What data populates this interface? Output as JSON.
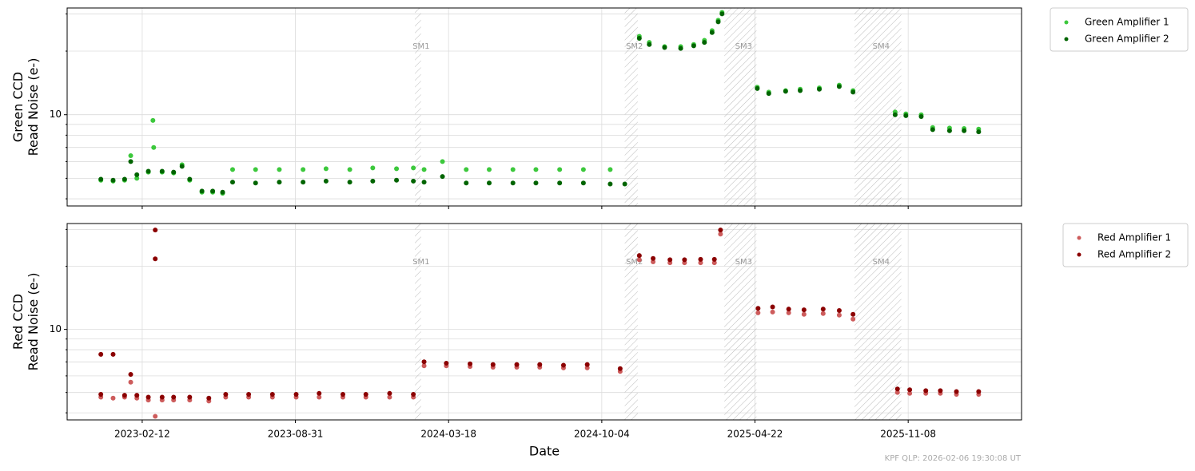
{
  "chart_data": [
    {
      "type": "scatter",
      "ylabel": [
        "Green CCD",
        "Read Noise (e-)"
      ],
      "log_y": true,
      "grid": true,
      "xlim": [
        "2022-11-06",
        "2026-04-05"
      ],
      "xticks": [
        "2023-02-12",
        "2023-08-31",
        "2024-03-18",
        "2024-10-04",
        "2025-04-22",
        "2025-11-08"
      ],
      "ylim": [
        3.7,
        32
      ],
      "yticks": [
        10
      ],
      "minor_yticks": [
        4,
        5,
        6,
        7,
        8,
        9,
        20,
        30
      ],
      "legend": "outside-upper-right",
      "shaded_regions": [
        {
          "label": "SM1",
          "start": "2024-02-03",
          "end": "2024-02-11"
        },
        {
          "label": "SM2",
          "start": "2024-11-03",
          "end": "2024-11-20"
        },
        {
          "label": "SM3",
          "start": "2025-03-13",
          "end": "2025-04-24"
        },
        {
          "label": "SM4",
          "start": "2025-08-30",
          "end": "2025-10-30"
        }
      ],
      "series": [
        {
          "name": "Green Amplifier 1",
          "color": "#3cc83c",
          "x": [
            "2022-12-20",
            "2023-01-05",
            "2023-01-20",
            "2023-01-28",
            "2023-02-05",
            "2023-02-20",
            "2023-02-26",
            "2023-02-27",
            "2023-03-10",
            "2023-03-25",
            "2023-04-05",
            "2023-04-15",
            "2023-05-01",
            "2023-05-15",
            "2023-05-28",
            "2023-06-10",
            "2023-07-10",
            "2023-08-10",
            "2023-09-10",
            "2023-10-10",
            "2023-11-10",
            "2023-12-10",
            "2024-01-10",
            "2024-02-01",
            "2024-02-15",
            "2024-03-10",
            "2024-04-10",
            "2024-05-10",
            "2024-06-10",
            "2024-07-10",
            "2024-08-10",
            "2024-09-10",
            "2024-10-15",
            "2024-11-22",
            "2024-12-05",
            "2024-12-25",
            "2025-01-15",
            "2025-02-01",
            "2025-02-15",
            "2025-02-25",
            "2025-03-05",
            "2025-03-10",
            "2025-04-25",
            "2025-05-10",
            "2025-06-01",
            "2025-06-20",
            "2025-07-15",
            "2025-08-10",
            "2025-08-28",
            "2025-10-22",
            "2025-11-05",
            "2025-11-25",
            "2025-12-10",
            "2026-01-01",
            "2026-01-20",
            "2026-02-08"
          ],
          "values": [
            4.9,
            4.85,
            4.9,
            6.4,
            5.0,
            5.35,
            9.4,
            7.0,
            5.35,
            5.3,
            5.8,
            4.9,
            4.3,
            4.3,
            4.25,
            5.5,
            5.5,
            5.5,
            5.5,
            5.55,
            5.5,
            5.6,
            5.55,
            5.6,
            5.5,
            6.0,
            5.5,
            5.5,
            5.5,
            5.5,
            5.5,
            5.5,
            5.5,
            23.5,
            22.0,
            21.0,
            21.0,
            21.5,
            22.5,
            25.0,
            28.0,
            30.5,
            13.5,
            12.8,
            13.0,
            13.2,
            13.4,
            13.8,
            13.0,
            10.3,
            10.1,
            10.0,
            8.7,
            8.65,
            8.6,
            8.55
          ]
        },
        {
          "name": "Green Amplifier 2",
          "color": "#006400",
          "x": [
            "2022-12-20",
            "2023-01-05",
            "2023-01-20",
            "2023-01-28",
            "2023-02-05",
            "2023-02-20",
            "2023-03-10",
            "2023-03-25",
            "2023-04-05",
            "2023-04-15",
            "2023-05-01",
            "2023-05-15",
            "2023-05-28",
            "2023-06-10",
            "2023-07-10",
            "2023-08-10",
            "2023-09-10",
            "2023-10-10",
            "2023-11-10",
            "2023-12-10",
            "2024-01-10",
            "2024-02-01",
            "2024-02-15",
            "2024-03-10",
            "2024-04-10",
            "2024-05-10",
            "2024-06-10",
            "2024-07-10",
            "2024-08-10",
            "2024-09-10",
            "2024-10-15",
            "2024-11-03",
            "2024-11-22",
            "2024-12-05",
            "2024-12-25",
            "2025-01-15",
            "2025-02-01",
            "2025-02-15",
            "2025-02-25",
            "2025-03-05",
            "2025-03-10",
            "2025-04-25",
            "2025-05-10",
            "2025-06-01",
            "2025-06-20",
            "2025-07-15",
            "2025-08-10",
            "2025-08-28",
            "2025-10-22",
            "2025-11-05",
            "2025-11-25",
            "2025-12-10",
            "2026-01-01",
            "2026-01-20",
            "2026-02-08"
          ],
          "values": [
            4.95,
            4.9,
            4.95,
            6.0,
            5.2,
            5.4,
            5.4,
            5.35,
            5.7,
            4.95,
            4.35,
            4.35,
            4.3,
            4.8,
            4.75,
            4.8,
            4.8,
            4.85,
            4.8,
            4.85,
            4.9,
            4.85,
            4.8,
            5.1,
            4.75,
            4.75,
            4.75,
            4.75,
            4.75,
            4.75,
            4.7,
            4.7,
            23.0,
            21.5,
            20.8,
            20.6,
            21.2,
            22.0,
            24.5,
            27.5,
            30.0,
            13.3,
            12.6,
            12.9,
            13.0,
            13.2,
            13.6,
            12.8,
            10.0,
            9.9,
            9.8,
            8.5,
            8.4,
            8.4,
            8.3
          ]
        }
      ]
    },
    {
      "type": "scatter",
      "ylabel": [
        "Red CCD",
        "Read Noise (e-)"
      ],
      "xlabel": "Date",
      "log_y": true,
      "grid": true,
      "xlim": [
        "2022-11-06",
        "2026-04-05"
      ],
      "xticks": [
        "2023-02-12",
        "2023-08-31",
        "2024-03-18",
        "2024-10-04",
        "2025-04-22",
        "2025-11-08"
      ],
      "ylim": [
        3.7,
        32
      ],
      "yticks": [
        10
      ],
      "minor_yticks": [
        4,
        5,
        6,
        7,
        8,
        9,
        20,
        30
      ],
      "legend": "outside-upper-right",
      "shaded_regions": [
        {
          "label": "SM1",
          "start": "2024-02-03",
          "end": "2024-02-11"
        },
        {
          "label": "SM2",
          "start": "2024-11-03",
          "end": "2024-11-20"
        },
        {
          "label": "SM3",
          "start": "2025-03-13",
          "end": "2025-04-24"
        },
        {
          "label": "SM4",
          "start": "2025-08-30",
          "end": "2025-10-30"
        }
      ],
      "series": [
        {
          "name": "Red Amplifier 1",
          "color": "#cd5c5c",
          "x": [
            "2022-12-20",
            "2023-01-05",
            "2023-01-20",
            "2023-01-28",
            "2023-02-05",
            "2023-02-20",
            "2023-03-01",
            "2023-03-10",
            "2023-03-25",
            "2023-04-15",
            "2023-05-10",
            "2023-06-01",
            "2023-07-01",
            "2023-08-01",
            "2023-09-01",
            "2023-10-01",
            "2023-11-01",
            "2023-12-01",
            "2024-01-01",
            "2024-02-01",
            "2024-02-15",
            "2024-03-15",
            "2024-04-15",
            "2024-05-15",
            "2024-06-15",
            "2024-07-15",
            "2024-08-15",
            "2024-09-15",
            "2024-10-28",
            "2024-11-22",
            "2024-12-10",
            "2025-01-01",
            "2025-01-20",
            "2025-02-10",
            "2025-02-28",
            "2025-03-08",
            "2025-04-26",
            "2025-05-15",
            "2025-06-05",
            "2025-06-25",
            "2025-07-20",
            "2025-08-10",
            "2025-08-28",
            "2025-10-25",
            "2025-11-10",
            "2025-12-01",
            "2025-12-20",
            "2026-01-10",
            "2026-02-08"
          ],
          "values": [
            4.75,
            4.7,
            4.75,
            5.6,
            4.7,
            4.6,
            3.85,
            4.6,
            4.6,
            4.6,
            4.55,
            4.75,
            4.75,
            4.75,
            4.75,
            4.75,
            4.75,
            4.75,
            4.75,
            4.75,
            6.7,
            6.7,
            6.65,
            6.6,
            6.6,
            6.6,
            6.55,
            6.55,
            6.3,
            21.5,
            21.0,
            20.8,
            20.8,
            20.8,
            20.8,
            28.5,
            12.0,
            12.1,
            12.0,
            11.8,
            11.9,
            11.7,
            11.2,
            5.0,
            4.95,
            4.95,
            4.95,
            4.9,
            4.9
          ]
        },
        {
          "name": "Red Amplifier 2",
          "color": "#8b0000",
          "x": [
            "2022-12-20",
            "2022-12-20",
            "2023-01-05",
            "2023-01-20",
            "2023-01-28",
            "2023-02-05",
            "2023-02-20",
            "2023-03-01",
            "2023-03-01",
            "2023-03-10",
            "2023-03-25",
            "2023-04-15",
            "2023-05-10",
            "2023-06-01",
            "2023-07-01",
            "2023-08-01",
            "2023-09-01",
            "2023-10-01",
            "2023-11-01",
            "2023-12-01",
            "2024-01-01",
            "2024-02-01",
            "2024-02-15",
            "2024-03-15",
            "2024-04-15",
            "2024-05-15",
            "2024-06-15",
            "2024-07-15",
            "2024-08-15",
            "2024-09-15",
            "2024-10-28",
            "2024-11-22",
            "2024-12-10",
            "2025-01-01",
            "2025-01-20",
            "2025-02-10",
            "2025-02-28",
            "2025-03-08",
            "2025-04-26",
            "2025-05-15",
            "2025-06-05",
            "2025-06-25",
            "2025-07-20",
            "2025-08-10",
            "2025-08-28",
            "2025-10-25",
            "2025-11-10",
            "2025-12-01",
            "2025-12-20",
            "2026-01-10",
            "2026-02-08"
          ],
          "values": [
            7.6,
            4.9,
            7.6,
            4.85,
            6.1,
            4.85,
            4.75,
            29.8,
            21.7,
            4.75,
            4.75,
            4.75,
            4.7,
            4.9,
            4.9,
            4.9,
            4.9,
            4.95,
            4.9,
            4.9,
            4.95,
            4.9,
            7.0,
            6.9,
            6.85,
            6.8,
            6.8,
            6.8,
            6.75,
            6.8,
            6.5,
            22.5,
            21.8,
            21.5,
            21.5,
            21.6,
            21.6,
            29.8,
            12.6,
            12.8,
            12.5,
            12.4,
            12.5,
            12.3,
            11.8,
            5.2,
            5.15,
            5.1,
            5.1,
            5.05,
            5.05
          ]
        }
      ]
    }
  ],
  "footer": "KPF QLP: 2026-02-06 19:30:08 UT"
}
